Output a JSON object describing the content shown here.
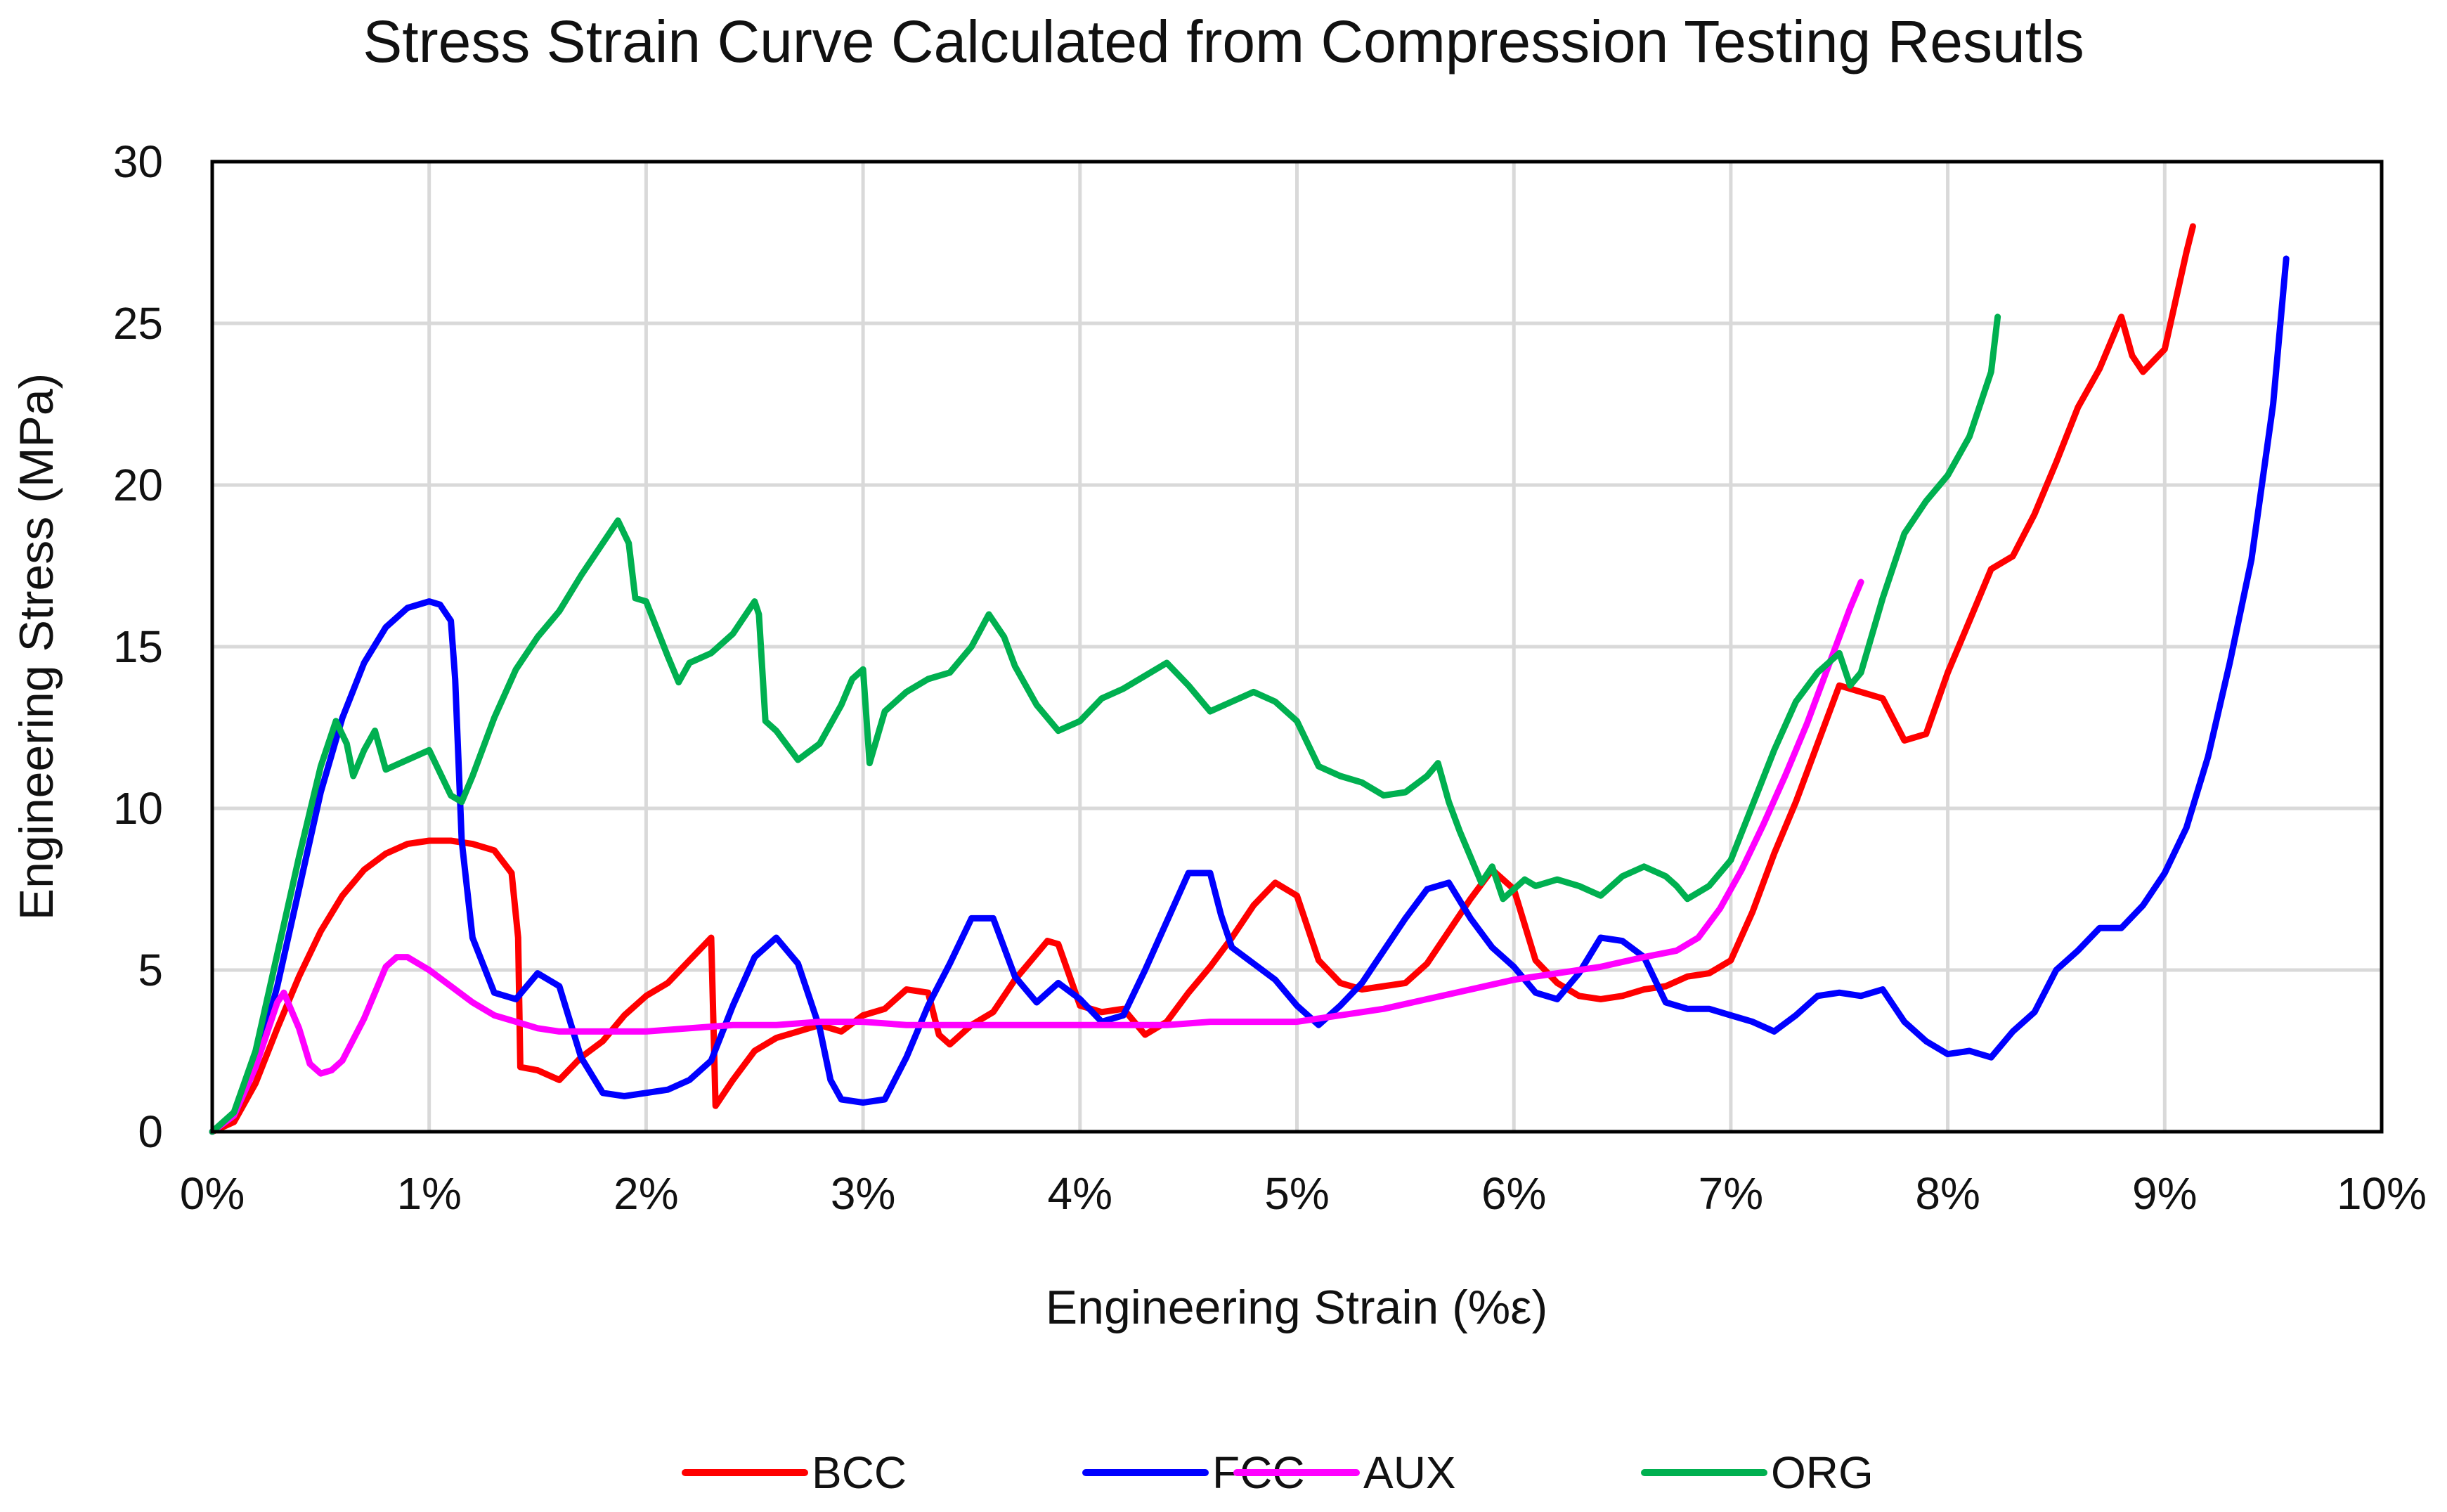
{
  "chart_data": {
    "type": "line",
    "title": "Stress Strain Curve Calculated from Compression Testing Resutls",
    "xlabel": "Engineering Strain (%ε)",
    "ylabel": "Engineering Stress (MPa)",
    "xlim": [
      0,
      10
    ],
    "ylim": [
      0,
      30
    ],
    "x_ticks": [
      0,
      1,
      2,
      3,
      4,
      5,
      6,
      7,
      8,
      9,
      10
    ],
    "x_tick_labels": [
      "0%",
      "1%",
      "2%",
      "3%",
      "4%",
      "5%",
      "6%",
      "7%",
      "8%",
      "9%",
      "10%"
    ],
    "y_ticks": [
      0,
      5,
      10,
      15,
      20,
      25,
      30
    ],
    "y_tick_labels": [
      "0",
      "5",
      "10",
      "15",
      "20",
      "25",
      "30"
    ],
    "grid": true,
    "legend_position": "bottom",
    "series": [
      {
        "name": "BCC",
        "color": "#ff0000",
        "x": [
          0,
          0.1,
          0.2,
          0.3,
          0.4,
          0.5,
          0.6,
          0.7,
          0.8,
          0.9,
          1.0,
          1.1,
          1.2,
          1.3,
          1.38,
          1.41,
          1.42,
          1.5,
          1.6,
          1.7,
          1.8,
          1.9,
          2.0,
          2.1,
          2.2,
          2.3,
          2.32,
          2.4,
          2.5,
          2.6,
          2.7,
          2.8,
          2.9,
          3.0,
          3.1,
          3.2,
          3.3,
          3.35,
          3.4,
          3.5,
          3.6,
          3.7,
          3.8,
          3.85,
          3.9,
          4.0,
          4.1,
          4.2,
          4.3,
          4.4,
          4.5,
          4.6,
          4.7,
          4.8,
          4.9,
          5.0,
          5.1,
          5.2,
          5.3,
          5.4,
          5.5,
          5.6,
          5.7,
          5.8,
          5.9,
          6.0,
          6.1,
          6.2,
          6.3,
          6.4,
          6.5,
          6.6,
          6.7,
          6.8,
          6.9,
          7.0,
          7.1,
          7.2,
          7.3,
          7.4,
          7.5,
          7.6,
          7.7,
          7.8,
          7.9,
          8.0,
          8.1,
          8.2,
          8.3,
          8.4,
          8.5,
          8.6,
          8.7,
          8.8,
          8.85,
          8.9,
          9.0,
          9.1,
          9.13
        ],
        "y": [
          0,
          0.3,
          1.5,
          3.2,
          4.8,
          6.2,
          7.3,
          8.1,
          8.6,
          8.9,
          9.0,
          9.0,
          8.9,
          8.7,
          8.0,
          6.0,
          2.0,
          1.9,
          1.6,
          2.3,
          2.8,
          3.6,
          4.2,
          4.6,
          5.3,
          6.0,
          0.8,
          1.6,
          2.5,
          2.9,
          3.1,
          3.3,
          3.1,
          3.6,
          3.8,
          4.4,
          4.3,
          3.0,
          2.7,
          3.3,
          3.7,
          4.7,
          5.5,
          5.9,
          5.8,
          3.9,
          3.7,
          3.8,
          3.0,
          3.4,
          4.3,
          5.1,
          6.0,
          7.0,
          7.7,
          7.3,
          5.3,
          4.6,
          4.4,
          4.5,
          4.6,
          5.2,
          6.2,
          7.2,
          8.1,
          7.5,
          5.3,
          4.6,
          4.2,
          4.1,
          4.2,
          4.4,
          4.5,
          4.8,
          4.9,
          5.3,
          6.8,
          8.6,
          10.2,
          12.0,
          13.8,
          13.6,
          13.4,
          12.1,
          12.3,
          14.2,
          15.8,
          17.4,
          17.8,
          19.1,
          20.7,
          22.4,
          23.6,
          25.2,
          24.0,
          23.5,
          24.2,
          27.2,
          28.0
        ]
      },
      {
        "name": "FCC",
        "color": "#0000ff",
        "x": [
          0,
          0.1,
          0.2,
          0.3,
          0.4,
          0.5,
          0.6,
          0.7,
          0.8,
          0.9,
          1.0,
          1.05,
          1.1,
          1.12,
          1.15,
          1.2,
          1.3,
          1.4,
          1.5,
          1.6,
          1.7,
          1.8,
          1.9,
          2.0,
          2.1,
          2.2,
          2.3,
          2.4,
          2.5,
          2.6,
          2.7,
          2.8,
          2.85,
          2.9,
          3.0,
          3.1,
          3.2,
          3.3,
          3.4,
          3.5,
          3.6,
          3.7,
          3.8,
          3.9,
          4.0,
          4.1,
          4.2,
          4.3,
          4.4,
          4.5,
          4.6,
          4.65,
          4.7,
          4.8,
          4.9,
          5.0,
          5.1,
          5.2,
          5.3,
          5.4,
          5.5,
          5.6,
          5.7,
          5.8,
          5.9,
          6.0,
          6.1,
          6.2,
          6.3,
          6.4,
          6.5,
          6.6,
          6.7,
          6.8,
          6.9,
          7.0,
          7.1,
          7.2,
          7.3,
          7.4,
          7.5,
          7.6,
          7.7,
          7.8,
          7.9,
          8.0,
          8.1,
          8.2,
          8.3,
          8.4,
          8.5,
          8.6,
          8.7,
          8.8,
          8.9,
          9.0,
          9.1,
          9.2,
          9.3,
          9.4,
          9.5,
          9.56
        ],
        "y": [
          0,
          0.5,
          2.0,
          4.5,
          7.5,
          10.5,
          12.8,
          14.5,
          15.6,
          16.2,
          16.4,
          16.3,
          15.8,
          14.0,
          9.0,
          6.0,
          4.3,
          4.1,
          4.9,
          4.5,
          2.3,
          1.2,
          1.1,
          1.2,
          1.3,
          1.6,
          2.2,
          3.9,
          5.4,
          6.0,
          5.2,
          3.2,
          1.6,
          1.0,
          0.9,
          1.0,
          2.3,
          3.9,
          5.2,
          6.6,
          6.6,
          4.8,
          4.0,
          4.6,
          4.1,
          3.4,
          3.6,
          5.0,
          6.5,
          8.0,
          8.0,
          6.7,
          5.7,
          5.2,
          4.7,
          3.9,
          3.3,
          3.9,
          4.6,
          5.6,
          6.6,
          7.5,
          7.7,
          6.6,
          5.7,
          5.1,
          4.3,
          4.1,
          4.9,
          6.0,
          5.9,
          5.4,
          4.0,
          3.8,
          3.8,
          3.6,
          3.4,
          3.1,
          3.6,
          4.2,
          4.3,
          4.2,
          4.4,
          3.4,
          2.8,
          2.4,
          2.5,
          2.3,
          3.1,
          3.7,
          5.0,
          5.6,
          6.3,
          6.3,
          7.0,
          8.0,
          9.4,
          11.6,
          14.5,
          17.7,
          22.5,
          27.0
        ]
      },
      {
        "name": "AUX",
        "color": "#ff00ff",
        "x": [
          0,
          0.1,
          0.2,
          0.3,
          0.33,
          0.4,
          0.45,
          0.5,
          0.55,
          0.6,
          0.7,
          0.8,
          0.85,
          0.9,
          1.0,
          1.1,
          1.2,
          1.3,
          1.4,
          1.5,
          1.6,
          1.7,
          1.8,
          1.9,
          2.0,
          2.2,
          2.4,
          2.6,
          2.8,
          3.0,
          3.2,
          3.4,
          3.6,
          3.8,
          4.0,
          4.2,
          4.4,
          4.6,
          4.8,
          5.0,
          5.2,
          5.4,
          5.6,
          5.8,
          6.0,
          6.2,
          6.4,
          6.6,
          6.75,
          6.85,
          6.95,
          7.05,
          7.15,
          7.25,
          7.35,
          7.45,
          7.55,
          7.6
        ],
        "y": [
          0,
          0.5,
          2.0,
          4.0,
          4.3,
          3.2,
          2.1,
          1.8,
          1.9,
          2.2,
          3.5,
          5.1,
          5.4,
          5.4,
          5.0,
          4.5,
          4.0,
          3.6,
          3.4,
          3.2,
          3.1,
          3.1,
          3.1,
          3.1,
          3.1,
          3.2,
          3.3,
          3.3,
          3.4,
          3.4,
          3.3,
          3.3,
          3.3,
          3.3,
          3.3,
          3.3,
          3.3,
          3.4,
          3.4,
          3.4,
          3.6,
          3.8,
          4.1,
          4.4,
          4.7,
          4.9,
          5.1,
          5.4,
          5.6,
          6.0,
          6.9,
          8.1,
          9.5,
          11.0,
          12.6,
          14.4,
          16.2,
          17.0
        ]
      },
      {
        "name": "ORG",
        "color": "#00b050",
        "x": [
          0,
          0.1,
          0.2,
          0.3,
          0.4,
          0.5,
          0.57,
          0.62,
          0.65,
          0.7,
          0.75,
          0.8,
          0.9,
          1.0,
          1.1,
          1.15,
          1.2,
          1.3,
          1.4,
          1.5,
          1.6,
          1.7,
          1.8,
          1.87,
          1.92,
          1.95,
          2.0,
          2.1,
          2.15,
          2.2,
          2.3,
          2.4,
          2.5,
          2.52,
          2.55,
          2.6,
          2.7,
          2.8,
          2.9,
          2.95,
          3.0,
          3.03,
          3.1,
          3.2,
          3.3,
          3.4,
          3.5,
          3.58,
          3.65,
          3.7,
          3.8,
          3.9,
          4.0,
          4.1,
          4.2,
          4.3,
          4.4,
          4.5,
          4.6,
          4.7,
          4.8,
          4.9,
          5.0,
          5.1,
          5.2,
          5.3,
          5.4,
          5.5,
          5.6,
          5.65,
          5.7,
          5.75,
          5.8,
          5.85,
          5.9,
          5.95,
          6.0,
          6.05,
          6.1,
          6.2,
          6.3,
          6.4,
          6.5,
          6.6,
          6.7,
          6.75,
          6.8,
          6.9,
          7.0,
          7.1,
          7.2,
          7.3,
          7.4,
          7.5,
          7.55,
          7.6,
          7.7,
          7.8,
          7.9,
          8.0,
          8.1,
          8.2,
          8.23
        ],
        "y": [
          0,
          0.6,
          2.5,
          5.5,
          8.5,
          11.3,
          12.7,
          12.0,
          11.0,
          11.8,
          12.4,
          11.2,
          11.5,
          11.8,
          10.4,
          10.2,
          11.0,
          12.8,
          14.3,
          15.3,
          16.1,
          17.2,
          18.2,
          18.9,
          18.2,
          16.5,
          16.4,
          14.7,
          13.9,
          14.5,
          14.8,
          15.4,
          16.4,
          16.0,
          12.7,
          12.4,
          11.5,
          12.0,
          13.2,
          14.0,
          14.3,
          11.4,
          13.0,
          13.6,
          14.0,
          14.2,
          15.0,
          16.0,
          15.3,
          14.4,
          13.2,
          12.4,
          12.7,
          13.4,
          13.7,
          14.1,
          14.5,
          13.8,
          13.0,
          13.3,
          13.6,
          13.3,
          12.7,
          11.3,
          11.0,
          10.8,
          10.4,
          10.5,
          11.0,
          11.4,
          10.2,
          9.3,
          8.5,
          7.7,
          8.2,
          7.2,
          7.5,
          7.8,
          7.6,
          7.8,
          7.6,
          7.3,
          7.9,
          8.2,
          7.9,
          7.6,
          7.2,
          7.6,
          8.4,
          10.1,
          11.8,
          13.3,
          14.2,
          14.8,
          13.8,
          14.2,
          16.5,
          18.5,
          19.5,
          20.3,
          21.5,
          23.5,
          25.2
        ]
      }
    ]
  }
}
